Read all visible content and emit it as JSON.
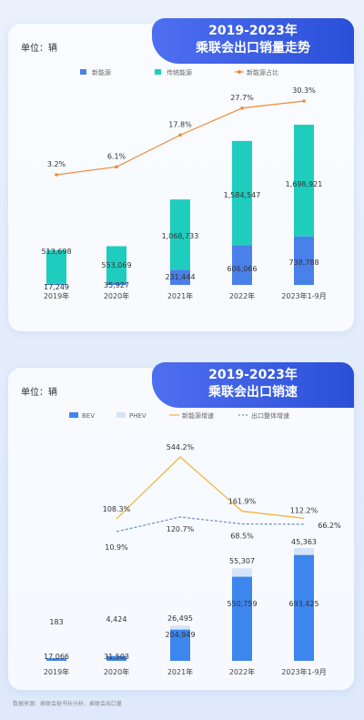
{
  "source_note": "数据来源：乘联会秘书长分析、乘联会出口量",
  "chart_data": [
    {
      "type": "bar",
      "title": "2019-2023年乘联会出口销量走势",
      "unit_label": "单位：辆",
      "categories": [
        "2019年",
        "2020年",
        "2021年",
        "2022年",
        "2023年1-9月"
      ],
      "series": [
        {
          "name": "新能源",
          "type": "bar",
          "stack": "total",
          "color": "#4a80ea",
          "values": [
            17249,
            35927,
            231444,
            606066,
            738788
          ]
        },
        {
          "name": "传统能源",
          "type": "bar",
          "stack": "total",
          "color": "#1fcdbe",
          "values": [
            513698,
            553069,
            1068733,
            1584547,
            1698921
          ]
        },
        {
          "name": "新能源占比",
          "type": "line",
          "axis": "secondary",
          "unit": "%",
          "color": "#f08a3c",
          "values": [
            3.2,
            6.1,
            17.8,
            27.7,
            30.3
          ]
        }
      ],
      "value_labels": {
        "新能源": [
          "17,249",
          "35,927",
          "231,444",
          "606,066",
          "738,788"
        ],
        "传统能源": [
          "513,698",
          "553,069",
          "1,068,733",
          "1,584,547",
          "1,698,921"
        ],
        "新能源占比": [
          "3.2%",
          "6.1%",
          "17.8%",
          "27.7%",
          "30.3%"
        ]
      },
      "legend_position": "top",
      "grid": false
    },
    {
      "type": "bar",
      "title": "2019-2023年乘联会出口销速",
      "unit_label": "单位：辆",
      "categories": [
        "2019年",
        "2020年",
        "2021年",
        "2022年",
        "2023年1-9月"
      ],
      "series": [
        {
          "name": "BEV",
          "type": "bar",
          "stack": "total",
          "color": "#3d86ee",
          "values": [
            17066,
            31503,
            204949,
            550759,
            693425
          ]
        },
        {
          "name": "PHEV",
          "type": "bar",
          "stack": "total",
          "color": "#d6e4f8",
          "values": [
            183,
            4424,
            26495,
            55307,
            45363
          ]
        },
        {
          "name": "新能源增速",
          "type": "line",
          "axis": "secondary",
          "unit": "%",
          "color": "#f2b233",
          "values": [
            null,
            108.3,
            544.2,
            161.9,
            112.2
          ]
        },
        {
          "name": "出口整体增速",
          "type": "line",
          "axis": "secondary",
          "unit": "%",
          "dashed": true,
          "color": "#6b8fc8",
          "values": [
            null,
            10.9,
            120.7,
            68.5,
            66.2
          ]
        }
      ],
      "value_labels": {
        "BEV": [
          "17,066",
          "31,503",
          "204,949",
          "550,759",
          "693,425"
        ],
        "PHEV": [
          "183",
          "4,424",
          "26,495",
          "55,307",
          "45,363"
        ],
        "新能源增速": [
          "",
          "108.3%",
          "544.2%",
          "161.9%",
          "112.2%"
        ],
        "出口整体增速": [
          "",
          "10.9%",
          "120.7%",
          "68.5%",
          "66.2%"
        ]
      },
      "legend_position": "top",
      "grid": false
    }
  ]
}
